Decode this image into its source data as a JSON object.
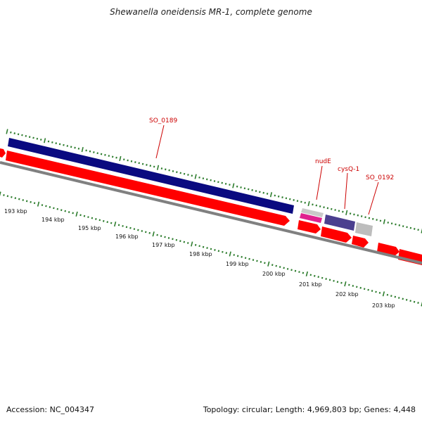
{
  "title": "Shewanella oneidensis MR-1, complete genome",
  "footer": {
    "accession": "Accession: NC_004347",
    "summary": "Topology: circular; Length: 4,969,803 bp; Genes: 4,448"
  },
  "ruler": {
    "labels": [
      "193 kbp",
      "194 kbp",
      "195 kbp",
      "196 kbp",
      "197 kbp",
      "198 kbp",
      "199 kbp",
      "200 kbp",
      "201 kbp",
      "202 kbp",
      "203 kbp"
    ]
  },
  "genes": [
    {
      "name": "SO_0189",
      "color": "#0a0a80"
    },
    {
      "name": "nudE",
      "color": "#e0208f"
    },
    {
      "name": "cysQ-1",
      "color": "#4b3f8f"
    },
    {
      "name": "SO_0192",
      "color": "#bdbdbd"
    }
  ],
  "colors": {
    "cds": "#ff0000",
    "backbone": "#808080",
    "tick": "#2e7d2e"
  }
}
